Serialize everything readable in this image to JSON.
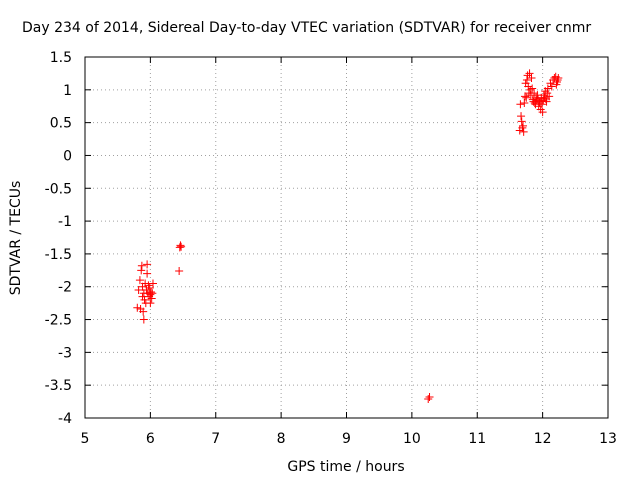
{
  "chart_data": {
    "type": "scatter",
    "title": "Day 234 of 2014, Sidereal Day-to-day VTEC variation (SDTVAR) for receiver cnmr",
    "xlabel": "GPS time / hours",
    "ylabel": "SDTVAR / TECUs",
    "xlim": [
      5,
      13
    ],
    "ylim": [
      -4,
      1.5
    ],
    "xticks": [
      5,
      6,
      7,
      8,
      9,
      10,
      11,
      12,
      13
    ],
    "xtick_labels": [
      "5",
      "6",
      "7",
      "8",
      "9",
      "10",
      "11",
      "12",
      "13"
    ],
    "yticks": [
      -4,
      -3.5,
      -3,
      -2.5,
      -2,
      -1.5,
      -1,
      -0.5,
      0,
      0.5,
      1,
      1.5
    ],
    "ytick_labels": [
      "-4",
      "-3.5",
      "-3",
      "-2.5",
      "-2",
      "-1.5",
      "-1",
      "-0.5",
      "0",
      "0.5",
      "1",
      "1.5"
    ],
    "grid": true,
    "marker": "+",
    "color": "#ff0000",
    "series": [
      {
        "name": "SDTVAR",
        "x": [
          5.8,
          5.82,
          5.84,
          5.85,
          5.86,
          5.87,
          5.88,
          5.88,
          5.89,
          5.9,
          5.9,
          5.91,
          5.92,
          5.93,
          5.94,
          5.95,
          5.95,
          5.96,
          5.97,
          5.98,
          5.99,
          6.0,
          6.0,
          6.01,
          6.02,
          6.03,
          6.04,
          6.44,
          6.45,
          6.46,
          6.47,
          10.25,
          10.27,
          11.65,
          11.66,
          11.67,
          11.68,
          11.69,
          11.7,
          11.71,
          11.72,
          11.73,
          11.74,
          11.75,
          11.76,
          11.77,
          11.78,
          11.79,
          11.8,
          11.81,
          11.82,
          11.83,
          11.84,
          11.85,
          11.86,
          11.87,
          11.88,
          11.89,
          11.9,
          11.91,
          11.92,
          11.93,
          11.94,
          11.95,
          11.96,
          11.97,
          11.98,
          11.99,
          12.0,
          12.01,
          12.02,
          12.03,
          12.04,
          12.05,
          12.06,
          12.07,
          12.08,
          12.1,
          12.12,
          12.14,
          12.16,
          12.18,
          12.2,
          12.21,
          12.22,
          12.23,
          12.24
        ],
        "y": [
          -2.32,
          -2.05,
          -1.9,
          -2.34,
          -1.75,
          -1.68,
          -2.0,
          -2.15,
          -2.38,
          -2.5,
          -2.1,
          -2.2,
          -1.95,
          -2.25,
          -2.05,
          -1.8,
          -1.66,
          -2.1,
          -1.98,
          -2.15,
          -2.02,
          -2.12,
          -2.25,
          -2.08,
          -2.18,
          -2.1,
          -1.95,
          -1.76,
          -1.4,
          -1.37,
          -1.39,
          -3.71,
          -3.68,
          0.38,
          0.78,
          0.6,
          0.52,
          0.42,
          0.45,
          0.36,
          0.8,
          0.9,
          1.1,
          0.88,
          1.15,
          1.22,
          1.05,
          0.95,
          1.25,
          1.0,
          0.92,
          1.18,
          1.02,
          0.85,
          0.82,
          0.95,
          0.8,
          0.78,
          0.88,
          0.84,
          0.92,
          0.86,
          0.75,
          0.8,
          0.82,
          0.7,
          0.88,
          0.78,
          0.66,
          0.84,
          0.92,
          0.88,
          0.98,
          0.86,
          0.82,
          0.95,
          1.02,
          0.9,
          1.1,
          1.05,
          1.15,
          1.18,
          1.2,
          1.08,
          1.12,
          1.15,
          1.18
        ]
      }
    ]
  }
}
